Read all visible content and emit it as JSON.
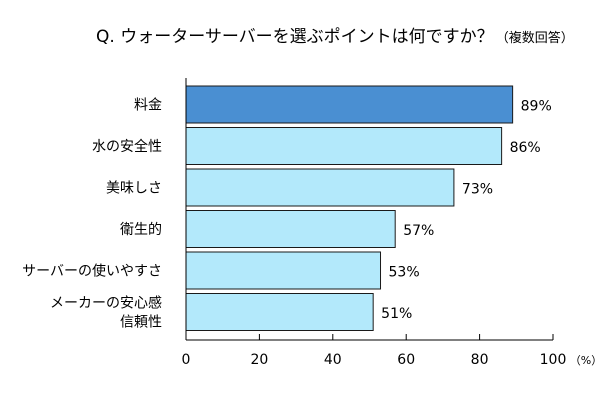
{
  "chart_data": {
    "type": "bar",
    "orientation": "horizontal",
    "title": "Q. ウォーターサーバーを選ぶポイントは何ですか？",
    "subtitle": "（複数回答）",
    "categories": [
      [
        "料金"
      ],
      [
        "水の安全性"
      ],
      [
        "美味しさ"
      ],
      [
        "衛生的"
      ],
      [
        "サーバーの使いやすさ"
      ],
      [
        "メーカーの安心感",
        "信頼性"
      ]
    ],
    "values": [
      89,
      86,
      73,
      57,
      53,
      51
    ],
    "value_labels": [
      "89%",
      "86%",
      "73%",
      "57%",
      "53%",
      "51%"
    ],
    "xticks": [
      0,
      20,
      40,
      60,
      80,
      100
    ],
    "xlim": [
      0,
      100
    ],
    "x_unit_label": "（%）",
    "grid": false,
    "colors": {
      "highlight_fill": "#4a8fd2",
      "bar_fill": "#b3e9fb",
      "bar_stroke": "#1a1a1a",
      "axis": "#000000"
    }
  }
}
